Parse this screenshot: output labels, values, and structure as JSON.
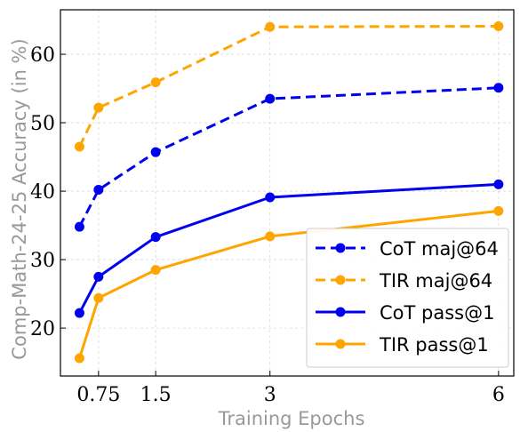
{
  "chart_data": {
    "type": "line",
    "xlabel": "Training Epochs",
    "ylabel": "Comp-Math-24-25 Accuracy (in %)",
    "x_ticks": [
      "0.75",
      "1.5",
      "3",
      "6"
    ],
    "y_ticks": [
      "20",
      "30",
      "40",
      "50",
      "60"
    ],
    "xlim": [
      0.25,
      6.2
    ],
    "ylim": [
      13,
      66.5
    ],
    "grid": true,
    "legend_position": "bottom-right",
    "x": [
      0.5,
      0.75,
      1.5,
      3,
      6
    ],
    "series": [
      {
        "name": "CoT maj@64",
        "color": "#0000ee",
        "style": "dashed",
        "values": [
          34.8,
          40.2,
          45.7,
          53.5,
          55.1
        ]
      },
      {
        "name": "TIR maj@64",
        "color": "#ffa500",
        "style": "dashed",
        "values": [
          46.5,
          52.2,
          55.9,
          64.0,
          64.1
        ]
      },
      {
        "name": "CoT pass@1",
        "color": "#0000ee",
        "style": "solid",
        "values": [
          22.2,
          27.5,
          33.3,
          39.1,
          41.0
        ]
      },
      {
        "name": "TIR pass@1",
        "color": "#ffa500",
        "style": "solid",
        "values": [
          15.6,
          24.4,
          28.5,
          33.4,
          37.1
        ]
      }
    ]
  }
}
